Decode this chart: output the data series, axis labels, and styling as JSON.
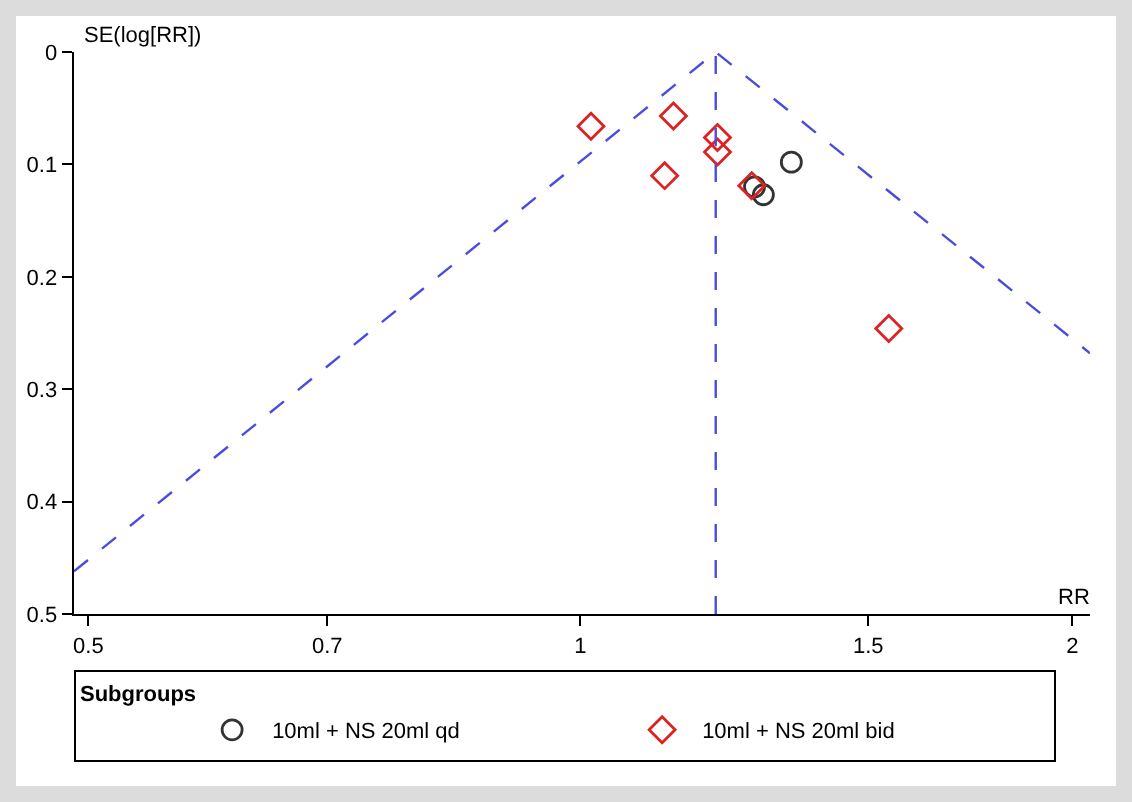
{
  "chart_data": {
    "type": "scatter",
    "xlabel": "RR",
    "ylabel": "SE(log[RR])",
    "legend_title": "Subgroups",
    "log": "x",
    "xlim": [
      0.49,
      2.05
    ],
    "xticks": [
      0.5,
      0.7,
      1,
      1.5,
      2
    ],
    "ylim": [
      0.5,
      0
    ],
    "yticks": [
      0,
      0.1,
      0.2,
      0.3,
      0.4,
      0.5
    ],
    "grid": false,
    "legend": "bottom",
    "series": [
      {
        "type": "line",
        "color": "#4b4bdd",
        "line_style": "dashed",
        "marker": "none",
        "x": [
          0.49,
          1.21,
          2.05
        ],
        "values": [
          0.462,
          0,
          0.268
        ]
      },
      {
        "name": "10ml + NS 20ml qd",
        "color": "#333333",
        "marker": "circle",
        "x": [
          1.346,
          1.294,
          1.278
        ],
        "values": [
          0.098,
          0.127,
          0.12
        ]
      },
      {
        "name": "10ml + NS 20ml bid",
        "color": "#dd2222",
        "marker": "diamond",
        "x": [
          1.015,
          1.14,
          1.213,
          1.213,
          1.126,
          1.273,
          1.544
        ],
        "values": [
          0.066,
          0.057,
          0.076,
          0.089,
          0.11,
          0.119,
          0.246
        ]
      }
    ],
    "ref_lines": [
      {
        "axis": "x",
        "value": 1.21,
        "color": "#4b4bdd",
        "line_style": "dashed"
      }
    ]
  }
}
